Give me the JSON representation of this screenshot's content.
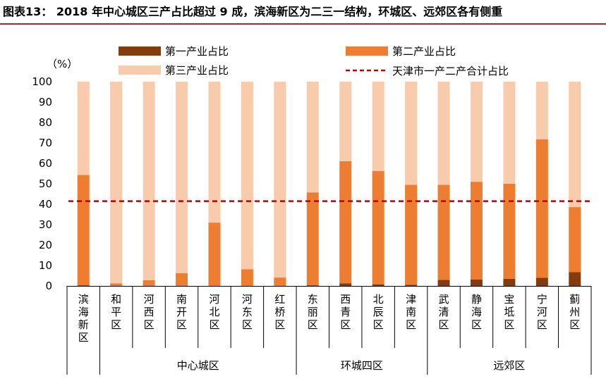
{
  "title": "图表13：  2018 年中心城区三产占比超过 9 成，滨海新区为二三一结构，环城区、远郊区各有侧重",
  "chart_data": {
    "type": "bar",
    "stacked": true,
    "unit_label": "（%）",
    "ylim": [
      0,
      100
    ],
    "yticks": [
      0,
      10,
      20,
      30,
      40,
      50,
      60,
      70,
      80,
      90,
      100
    ],
    "categories": [
      "滨海新区",
      "和平区",
      "河西区",
      "南开区",
      "河北区",
      "河东区",
      "红桥区",
      "东丽区",
      "西青区",
      "北辰区",
      "津南区",
      "武清区",
      "静海区",
      "宝坻区",
      "宁河区",
      "蓟州区"
    ],
    "series": [
      {
        "name": "第一产业占比",
        "color": "#843c0c",
        "values": [
          0.3,
          0,
          0,
          0,
          0,
          0,
          0,
          0.3,
          1.3,
          0.8,
          0.5,
          3,
          3.2,
          3.5,
          4,
          6.8
        ]
      },
      {
        "name": "第二产业占比",
        "color": "#ed7d31",
        "values": [
          54,
          1.2,
          2.8,
          6.2,
          31,
          8.2,
          4.1,
          45.5,
          59.8,
          55.5,
          49,
          46.5,
          47.8,
          46.5,
          67.8,
          31.8
        ]
      },
      {
        "name": "第三产业占比",
        "color": "#f8cbad",
        "values": [
          45.7,
          98.8,
          97.2,
          93.8,
          69,
          91.8,
          95.9,
          54.2,
          38.9,
          43.7,
          50.5,
          50.5,
          49,
          50,
          28.2,
          61.4
        ]
      }
    ],
    "reference_line": {
      "name": "天津市一产二产合计占比",
      "value": 41.5,
      "color": "#c00000",
      "style": "dashed"
    },
    "groups": [
      {
        "label": "中心城区",
        "start": 1,
        "end": 6
      },
      {
        "label": "环城四区",
        "start": 7,
        "end": 10
      },
      {
        "label": "远郊区",
        "start": 11,
        "end": 15
      }
    ],
    "legend_position": "top"
  }
}
